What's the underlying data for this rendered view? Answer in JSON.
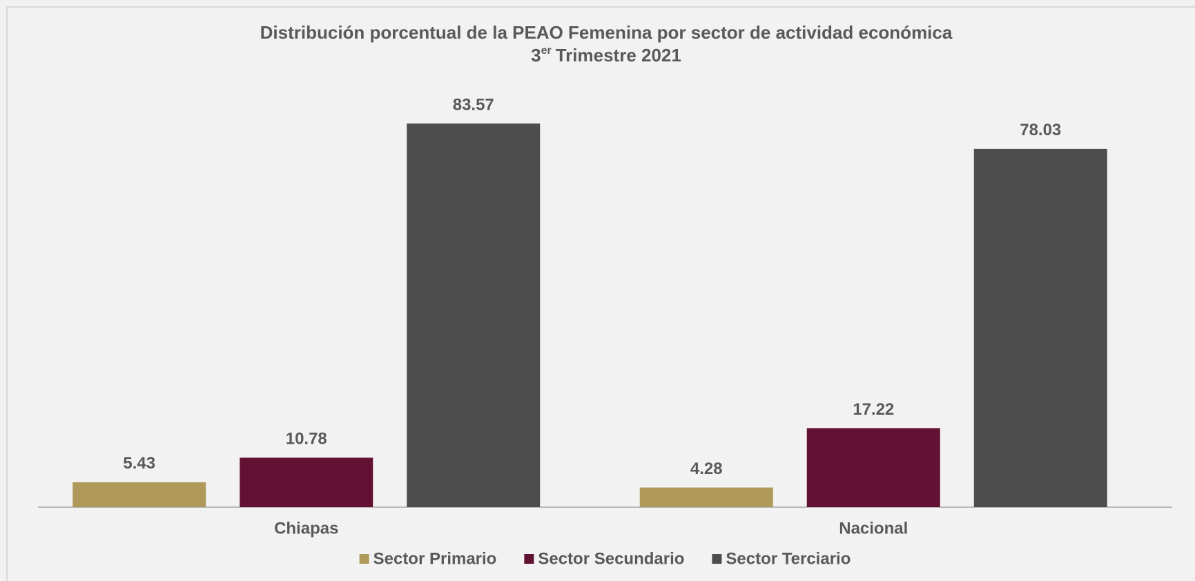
{
  "chart_data": {
    "type": "bar",
    "title": "Distribución porcentual de la PEAO Femenina por sector de actividad económica",
    "subtitle": {
      "main": "3",
      "superscript": "er",
      "rest": "Trimestre 2021"
    },
    "categories": [
      "Chiapas",
      "Nacional"
    ],
    "series": [
      {
        "name": "Sector Primario",
        "color": "#b09a5b",
        "values": [
          5.43,
          4.28
        ]
      },
      {
        "name": "Sector Secundario",
        "color": "#621132",
        "values": [
          10.78,
          17.22
        ]
      },
      {
        "name": "Sector Terciario",
        "color": "#4d4d4d",
        "values": [
          83.57,
          78.03
        ]
      }
    ],
    "legend": "bottom"
  }
}
